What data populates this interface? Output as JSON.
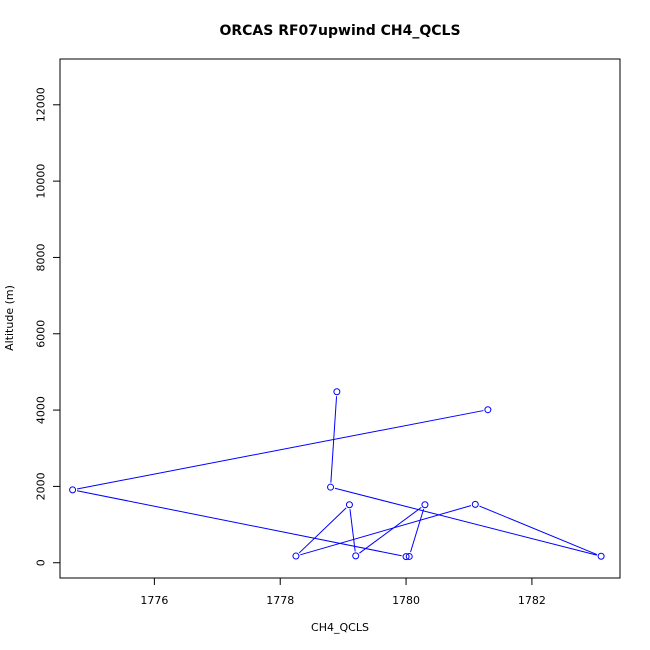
{
  "chart_data": {
    "type": "line",
    "title": "ORCAS RF07upwind CH4_QCLS",
    "xlabel": "CH4_QCLS",
    "ylabel": "Altitude (m)",
    "xlim": [
      1774.5,
      1783.4
    ],
    "ylim": [
      -400,
      13200
    ],
    "xticks": [
      1776,
      1778,
      1780,
      1782
    ],
    "yticks": [
      0,
      2000,
      4000,
      6000,
      8000,
      10000,
      12000
    ],
    "grid": false,
    "legend": "none",
    "line_color": "#0000ff",
    "marker": "open-circle",
    "series": [
      {
        "points": [
          {
            "x": 1778.9,
            "y": 4480
          },
          {
            "x": 1778.8,
            "y": 1980
          },
          {
            "x": 1783.1,
            "y": 170
          },
          {
            "x": 1781.1,
            "y": 1530
          },
          {
            "x": 1778.25,
            "y": 175
          },
          {
            "x": 1779.1,
            "y": 1520
          },
          {
            "x": 1779.2,
            "y": 180
          },
          {
            "x": 1780.3,
            "y": 1520
          },
          {
            "x": 1780.05,
            "y": 165
          },
          {
            "x": 1780.0,
            "y": 160
          },
          {
            "x": 1774.7,
            "y": 1910
          },
          {
            "x": 1781.3,
            "y": 4010
          }
        ]
      }
    ]
  }
}
